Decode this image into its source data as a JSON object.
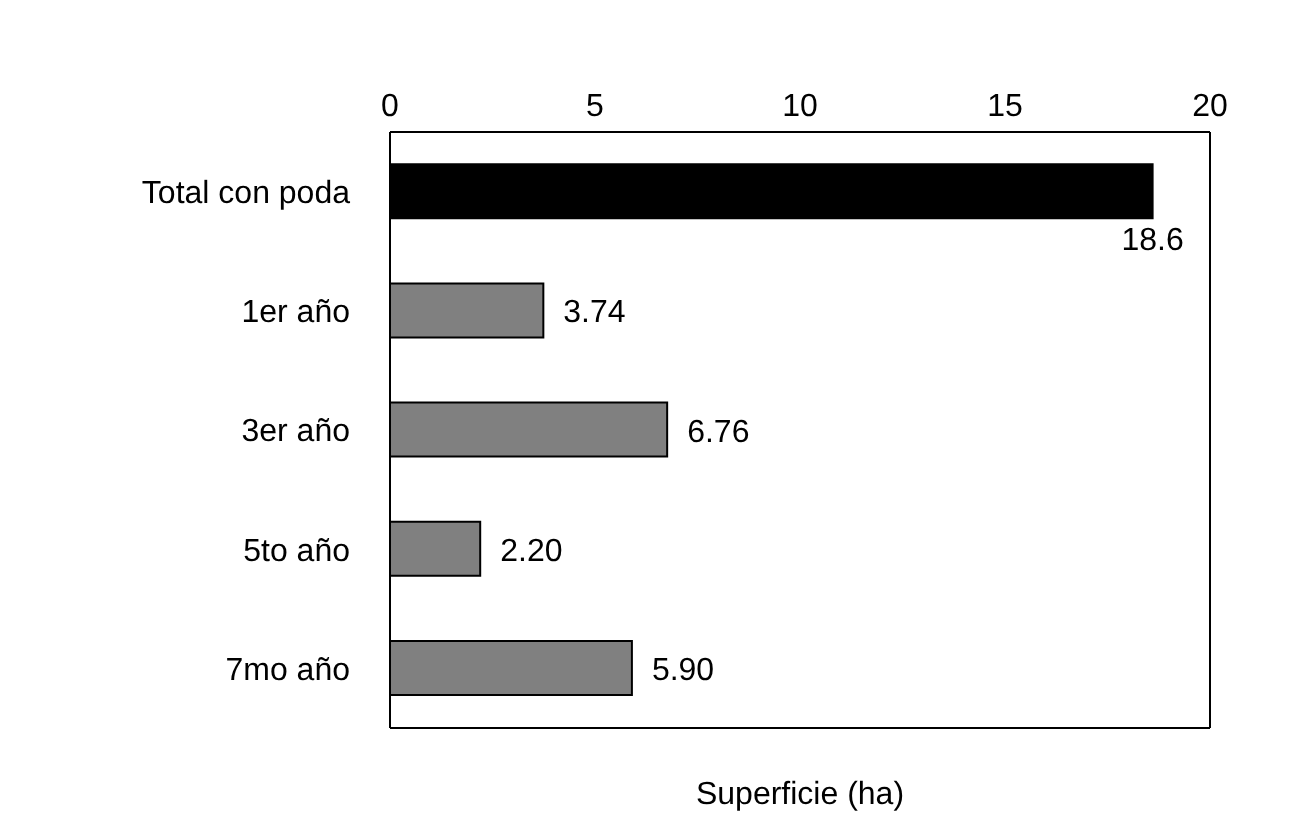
{
  "chart_data": {
    "type": "bar",
    "orientation": "horizontal",
    "xlabel": "Superficie (ha)",
    "categories": [
      "Total con poda",
      "1er año",
      "3er año",
      "5to año",
      "7mo año"
    ],
    "values": [
      18.6,
      3.74,
      6.76,
      2.2,
      5.9
    ],
    "value_labels": [
      "18.6",
      "3.74",
      "6.76",
      "2.20",
      "5.90"
    ],
    "colors": [
      "#000000",
      "#808080",
      "#808080",
      "#808080",
      "#808080"
    ],
    "xlim": [
      0,
      20
    ],
    "xticks": [
      0,
      5,
      10,
      15,
      20
    ],
    "grid": false,
    "legend": false
  }
}
